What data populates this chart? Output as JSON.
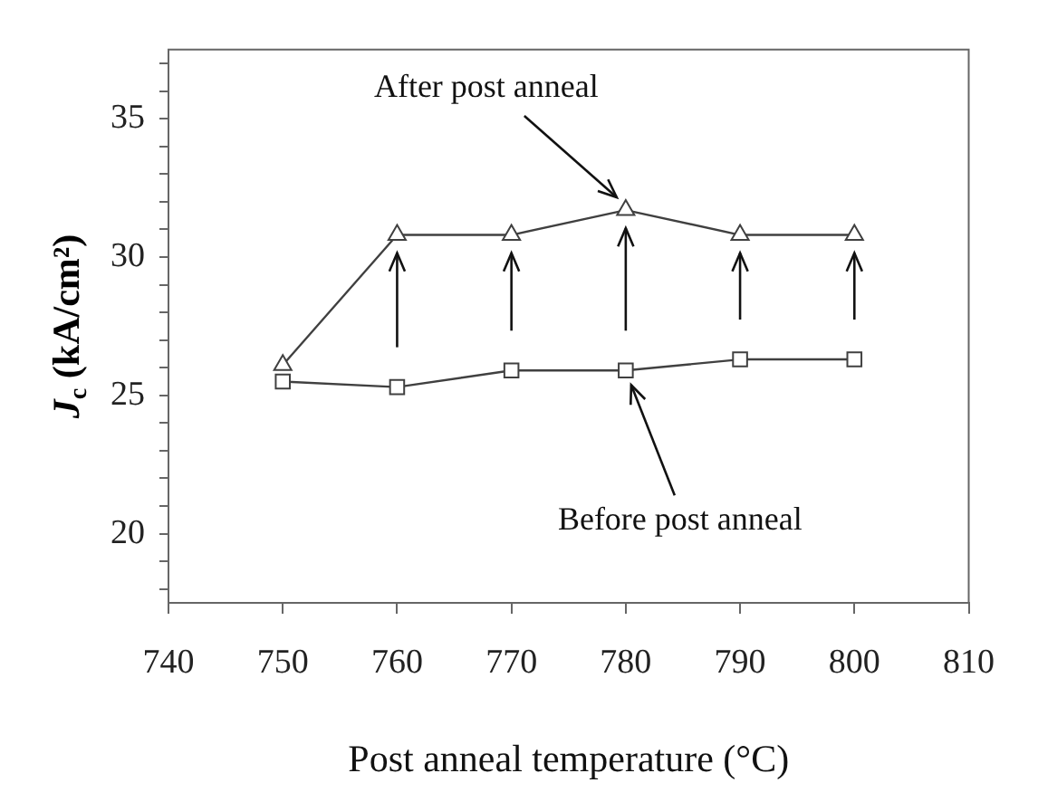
{
  "chart_data": {
    "type": "line",
    "xlabel": "Post anneal temperature (°C)",
    "ylabel": "J$_{c}$ (kA/cm²)",
    "x": [
      750,
      760,
      770,
      780,
      790,
      800
    ],
    "series": [
      {
        "color": "#404040",
        "marker": "square",
        "values": [
          25.5,
          25.3,
          25.9,
          25.9,
          26.3,
          26.3
        ]
      },
      {
        "color": "#404040",
        "marker": "triangle",
        "values": [
          26.1,
          30.8,
          30.8,
          31.7,
          30.8,
          30.8
        ]
      }
    ],
    "xlim": [
      740,
      810
    ],
    "xticks": [
      740,
      750,
      760,
      770,
      780,
      790,
      800,
      810
    ],
    "ylim": [
      17.5,
      37.5
    ],
    "yticks": [
      {
        "value": 18,
        "label": null
      },
      {
        "value": 19,
        "label": null
      },
      20,
      {
        "value": 21,
        "label": null
      },
      {
        "value": 22,
        "label": null
      },
      {
        "value": 23,
        "label": null
      },
      {
        "value": 24,
        "label": null
      },
      25,
      {
        "value": 26,
        "label": null
      },
      {
        "value": 27,
        "label": null
      },
      {
        "value": 28,
        "label": null
      },
      {
        "value": 29,
        "label": null
      },
      30,
      {
        "value": 31,
        "label": null
      },
      {
        "value": 32,
        "label": null
      },
      {
        "value": 33,
        "label": null
      },
      {
        "value": 34,
        "label": null
      },
      35,
      {
        "value": 36,
        "label": null
      },
      {
        "value": 37,
        "label": null
      }
    ],
    "grid": false,
    "legend": false,
    "line_style": "solid",
    "annotations": [
      {
        "text": "After post anneal",
        "x": 780,
        "y": 31.7
      },
      {
        "text": "Before post anneal",
        "x": 780,
        "y": 25.9
      }
    ]
  }
}
